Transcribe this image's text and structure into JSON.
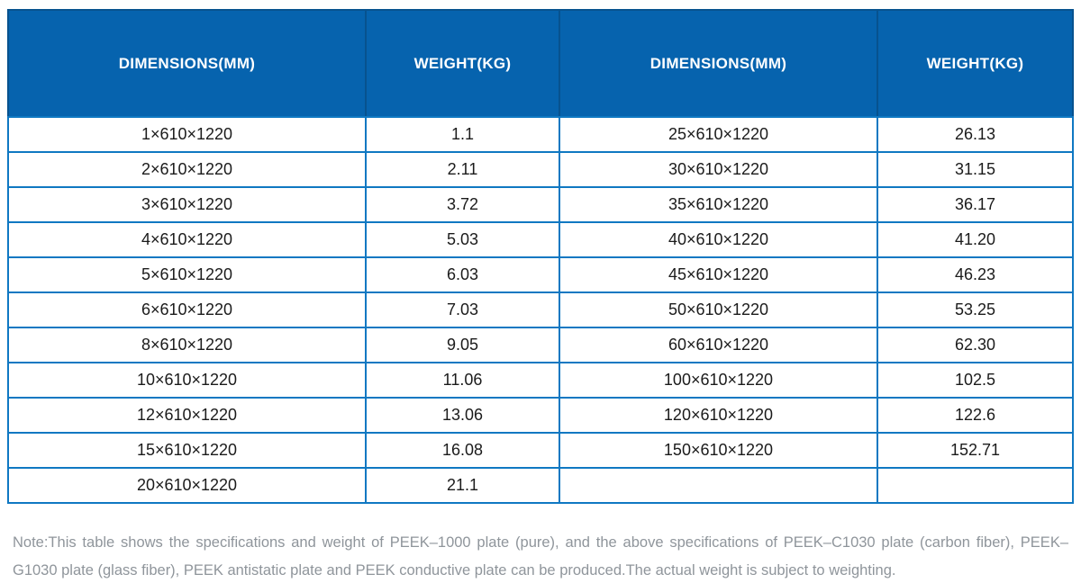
{
  "table": {
    "columns": [
      "DIMENSIONS(MM)",
      "WEIGHT(KG)",
      "DIMENSIONS(MM)",
      "WEIGHT(KG)"
    ],
    "rows": [
      [
        "1×610×1220",
        "1.1",
        "25×610×1220",
        "26.13"
      ],
      [
        "2×610×1220",
        "2.11",
        "30×610×1220",
        "31.15"
      ],
      [
        "3×610×1220",
        "3.72",
        "35×610×1220",
        "36.17"
      ],
      [
        "4×610×1220",
        "5.03",
        "40×610×1220",
        "41.20"
      ],
      [
        "5×610×1220",
        "6.03",
        "45×610×1220",
        "46.23"
      ],
      [
        "6×610×1220",
        "7.03",
        "50×610×1220",
        "53.25"
      ],
      [
        "8×610×1220",
        "9.05",
        "60×610×1220",
        "62.30"
      ],
      [
        "10×610×1220",
        "11.06",
        "100×610×1220",
        "102.5"
      ],
      [
        "12×610×1220",
        "13.06",
        "120×610×1220",
        "122.6"
      ],
      [
        "15×610×1220",
        "16.08",
        "150×610×1220",
        "152.71"
      ],
      [
        "20×610×1220",
        "21.1",
        "",
        ""
      ]
    ]
  },
  "note": "Note:This table shows the specifications and weight of PEEK–1000 plate (pure), and the above specifications of PEEK–C1030 plate (carbon fiber), PEEK–G1030 plate (glass fiber), PEEK antistatic plate and PEEK conductive plate can be produced.The actual weight is subject to weighting.",
  "colors": {
    "header_bg": "#0663ae",
    "header_border": "#07528f",
    "grid_border": "#0f78c2",
    "body_text": "#1b1b1b",
    "note_text": "#8f959b"
  },
  "chart_data": {
    "type": "table",
    "title": "PEEK-1000 plate (pure) specifications and weight",
    "columns": [
      "DIMENSIONS(MM)",
      "WEIGHT(KG)",
      "DIMENSIONS(MM)",
      "WEIGHT(KG)"
    ],
    "rows": [
      [
        "1×610×1220",
        "1.1",
        "25×610×1220",
        "26.13"
      ],
      [
        "2×610×1220",
        "2.11",
        "30×610×1220",
        "31.15"
      ],
      [
        "3×610×1220",
        "3.72",
        "35×610×1220",
        "36.17"
      ],
      [
        "4×610×1220",
        "5.03",
        "40×610×1220",
        "41.20"
      ],
      [
        "5×610×1220",
        "6.03",
        "45×610×1220",
        "46.23"
      ],
      [
        "6×610×1220",
        "7.03",
        "50×610×1220",
        "53.25"
      ],
      [
        "8×610×1220",
        "9.05",
        "60×610×1220",
        "62.30"
      ],
      [
        "10×610×1220",
        "11.06",
        "100×610×1220",
        "102.5"
      ],
      [
        "12×610×1220",
        "13.06",
        "120×610×1220",
        "122.6"
      ],
      [
        "15×610×1220",
        "16.08",
        "150×610×1220",
        "152.71"
      ],
      [
        "20×610×1220",
        "21.1",
        "",
        ""
      ]
    ],
    "thickness_mm_series_1": [
      1,
      2,
      3,
      4,
      5,
      6,
      8,
      10,
      12,
      15,
      20
    ],
    "weight_kg_series_1": [
      1.1,
      2.11,
      3.72,
      5.03,
      6.03,
      7.03,
      9.05,
      11.06,
      13.06,
      16.08,
      21.1
    ],
    "thickness_mm_series_2": [
      25,
      30,
      35,
      40,
      45,
      50,
      60,
      100,
      120,
      150
    ],
    "weight_kg_series_2": [
      26.13,
      31.15,
      36.17,
      41.2,
      46.23,
      53.25,
      62.3,
      102.5,
      122.6,
      152.71
    ]
  }
}
